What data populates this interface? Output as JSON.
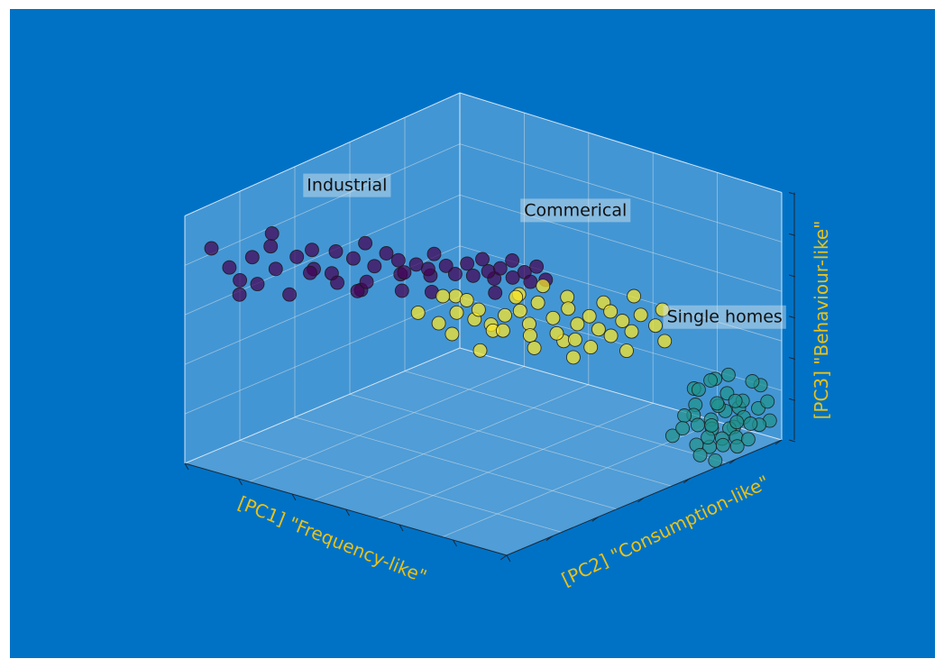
{
  "chart_data": {
    "type": "scatter",
    "projection": "3d",
    "title": "",
    "xlabel": "[PC1] \"Frequency-like\"",
    "ylabel": "[PC2] \"Consumption-like\"",
    "zlabel": "[PC3] \"Behaviour-like\"",
    "xlim": [
      0,
      10
    ],
    "ylim": [
      0,
      10
    ],
    "zlim": [
      0,
      10
    ],
    "grid": true,
    "tick_labels_visible": false,
    "colors": {
      "figure_background": "#0072c6",
      "pane_fill": "#9fc8e8",
      "grid": "#c8d8e4",
      "axis_label": "#e8c21a",
      "marker_edge": "#1a1a1a"
    },
    "annotations": [
      {
        "text": "Industrial",
        "x": 6.5,
        "y": 0.8,
        "z": 9.6
      },
      {
        "text": "Commerical",
        "x": 3.4,
        "y": 4.9,
        "z": 8.7
      },
      {
        "text": "Single homes",
        "x": 0.9,
        "y": 7.2,
        "z": 4.1
      }
    ],
    "series": [
      {
        "color": "#440154",
        "points": [
          [
            9.5,
            0.4,
            8.6
          ],
          [
            9.2,
            0.7,
            7.8
          ],
          [
            8.6,
            0.9,
            8.0
          ],
          [
            8.4,
            1.3,
            8.5
          ],
          [
            8.1,
            1.2,
            7.4
          ],
          [
            8.7,
            0.6,
            7.0
          ],
          [
            9.0,
            1.4,
            7.3
          ],
          [
            7.8,
            1.6,
            7.9
          ],
          [
            7.6,
            1.9,
            8.2
          ],
          [
            7.3,
            1.7,
            7.2
          ],
          [
            7.9,
            2.1,
            7.5
          ],
          [
            7.2,
            2.3,
            8.1
          ],
          [
            7.0,
            2.0,
            7.0
          ],
          [
            6.8,
            2.5,
            7.7
          ],
          [
            7.5,
            2.6,
            7.1
          ],
          [
            6.6,
            2.7,
            8.3
          ],
          [
            6.5,
            2.9,
            7.4
          ],
          [
            6.3,
            3.1,
            7.9
          ],
          [
            6.9,
            3.0,
            7.0
          ],
          [
            6.1,
            3.3,
            7.6
          ],
          [
            6.0,
            3.4,
            7.1
          ],
          [
            5.8,
            3.6,
            7.4
          ],
          [
            5.9,
            3.2,
            6.9
          ],
          [
            5.6,
            3.8,
            7.2
          ],
          [
            5.5,
            3.9,
            7.8
          ],
          [
            5.3,
            4.1,
            7.3
          ],
          [
            5.4,
            3.7,
            6.8
          ],
          [
            5.2,
            4.3,
            7.0
          ],
          [
            5.0,
            4.5,
            7.4
          ],
          [
            4.9,
            4.6,
            6.9
          ],
          [
            4.8,
            4.8,
            7.6
          ],
          [
            4.7,
            4.9,
            7.1
          ],
          [
            4.6,
            5.0,
            6.8
          ],
          [
            4.5,
            5.1,
            7.2
          ],
          [
            4.3,
            5.3,
            7.5
          ],
          [
            4.4,
            5.4,
            6.9
          ],
          [
            4.2,
            5.6,
            7.1
          ],
          [
            4.1,
            5.7,
            6.7
          ],
          [
            4.0,
            5.8,
            7.3
          ],
          [
            3.9,
            6.0,
            6.8
          ],
          [
            8.3,
            1.8,
            6.7
          ],
          [
            7.0,
            2.8,
            6.6
          ],
          [
            6.2,
            3.5,
            6.5
          ],
          [
            5.7,
            4.0,
            6.4
          ],
          [
            4.8,
            5.2,
            6.4
          ],
          [
            9.3,
            1.1,
            6.9
          ],
          [
            8.0,
            1.0,
            8.7
          ],
          [
            6.4,
            2.4,
            6.2
          ]
        ]
      },
      {
        "color": "#21918c",
        "points": [
          [
            0.9,
            8.7,
            2.4
          ],
          [
            1.2,
            8.3,
            2.0
          ],
          [
            1.5,
            8.6,
            1.6
          ],
          [
            0.7,
            8.9,
            1.8
          ],
          [
            1.0,
            9.1,
            1.3
          ],
          [
            1.4,
            9.0,
            1.1
          ],
          [
            1.8,
            8.8,
            1.4
          ],
          [
            0.6,
            9.3,
            1.6
          ],
          [
            0.8,
            9.5,
            1.1
          ],
          [
            1.2,
            9.4,
            0.8
          ],
          [
            1.6,
            9.2,
            0.9
          ],
          [
            2.0,
            9.1,
            1.2
          ],
          [
            0.5,
            9.7,
            1.4
          ],
          [
            0.9,
            9.8,
            1.0
          ],
          [
            1.3,
            9.7,
            0.6
          ],
          [
            1.7,
            9.6,
            0.7
          ],
          [
            2.1,
            9.5,
            0.9
          ],
          [
            0.4,
            9.9,
            1.7
          ],
          [
            0.7,
            9.9,
            0.9
          ],
          [
            1.1,
            9.9,
            0.5
          ],
          [
            1.5,
            9.9,
            0.4
          ],
          [
            1.9,
            9.8,
            0.6
          ],
          [
            2.2,
            9.7,
            1.5
          ],
          [
            2.4,
            9.4,
            0.7
          ],
          [
            0.3,
            9.6,
            2.2
          ],
          [
            2.6,
            9.2,
            1.9
          ],
          [
            1.0,
            9.2,
            2.8
          ],
          [
            2.3,
            9.9,
            0.2
          ],
          [
            2.8,
            9.0,
            1.1
          ],
          [
            0.2,
            9.8,
            0.8
          ],
          [
            1.6,
            9.4,
            1.9
          ],
          [
            2.0,
            9.7,
            2.3
          ],
          [
            1.3,
            8.9,
            2.6
          ],
          [
            0.6,
            9.6,
            2.5
          ],
          [
            2.5,
            9.6,
            0.4
          ],
          [
            1.8,
            9.3,
            0.3
          ],
          [
            1.1,
            9.5,
            1.9
          ],
          [
            0.8,
            9.2,
            0.6
          ],
          [
            2.2,
            9.3,
            2.8
          ],
          [
            1.4,
            9.8,
            1.3
          ],
          [
            0.5,
            9.1,
            1.2
          ],
          [
            2.9,
            9.4,
            1.6
          ]
        ]
      },
      {
        "color": "#fde725",
        "points": [
          [
            6.2,
            4.0,
            5.8
          ],
          [
            5.8,
            4.3,
            5.3
          ],
          [
            5.5,
            4.6,
            5.7
          ],
          [
            5.9,
            4.8,
            5.1
          ],
          [
            5.2,
            4.9,
            5.4
          ],
          [
            5.4,
            5.2,
            6.0
          ],
          [
            5.0,
            5.3,
            5.0
          ],
          [
            4.8,
            5.5,
            5.6
          ],
          [
            5.1,
            5.7,
            5.2
          ],
          [
            4.6,
            5.8,
            5.8
          ],
          [
            4.5,
            6.0,
            5.3
          ],
          [
            4.3,
            6.1,
            6.1
          ],
          [
            4.7,
            6.2,
            5.0
          ],
          [
            4.1,
            6.4,
            5.5
          ],
          [
            4.2,
            6.6,
            5.0
          ],
          [
            3.9,
            6.7,
            5.9
          ],
          [
            3.8,
            6.9,
            5.3
          ],
          [
            4.0,
            7.0,
            4.8
          ],
          [
            3.6,
            7.1,
            5.6
          ],
          [
            3.5,
            7.3,
            5.1
          ],
          [
            3.3,
            7.5,
            5.8
          ],
          [
            3.4,
            7.6,
            4.9
          ],
          [
            3.1,
            7.7,
            5.4
          ],
          [
            3.0,
            7.9,
            5.0
          ],
          [
            2.9,
            8.1,
            5.7
          ],
          [
            5.3,
            4.4,
            6.2
          ],
          [
            5.6,
            5.0,
            6.4
          ],
          [
            4.4,
            5.6,
            6.3
          ],
          [
            4.9,
            6.5,
            4.7
          ],
          [
            3.7,
            6.5,
            6.2
          ],
          [
            3.2,
            7.2,
            6.0
          ],
          [
            2.8,
            7.8,
            6.3
          ],
          [
            4.6,
            4.9,
            4.9
          ],
          [
            5.7,
            5.5,
            4.6
          ],
          [
            3.9,
            7.4,
            4.6
          ],
          [
            2.6,
            8.3,
            5.2
          ],
          [
            2.5,
            8.5,
            4.6
          ],
          [
            4.0,
            6.0,
            6.6
          ],
          [
            6.0,
            4.6,
            6.6
          ],
          [
            3.3,
            8.0,
            4.4
          ],
          [
            5.1,
            6.1,
            6.7
          ],
          [
            4.3,
            7.2,
            4.3
          ],
          [
            2.7,
            8.6,
            6.0
          ],
          [
            3.6,
            6.3,
            4.3
          ]
        ]
      }
    ]
  }
}
